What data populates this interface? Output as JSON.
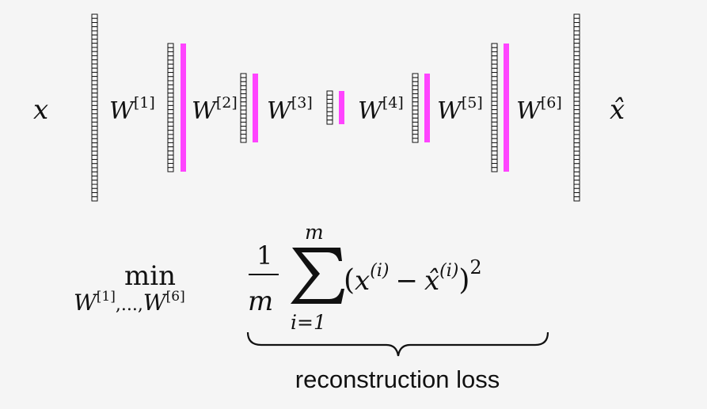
{
  "network": {
    "input_label": "x",
    "output_label": "x̂",
    "weight_base": "W",
    "weights": [
      "[1]",
      "[2]",
      "[3]",
      "[4]",
      "[5]",
      "[6]"
    ],
    "code_color": "#ff44ff"
  },
  "objective": {
    "min_label": "min",
    "min_sub_w1": "W",
    "min_sub_w1_sup": "[1]",
    "min_sub_sep": ",...,",
    "min_sub_w6": "W",
    "min_sub_w6_sup": "[6]",
    "frac_num": "1",
    "frac_den": "m",
    "sum_upper": "m",
    "sum_lower": "i=1",
    "open_paren": "(",
    "term_x": "x",
    "term_x_sup": "(i)",
    "minus": "−",
    "term_xhat": "x̂",
    "term_xhat_sup": "(i)",
    "close_paren": ")",
    "power": "2",
    "brace_label": "reconstruction loss"
  }
}
